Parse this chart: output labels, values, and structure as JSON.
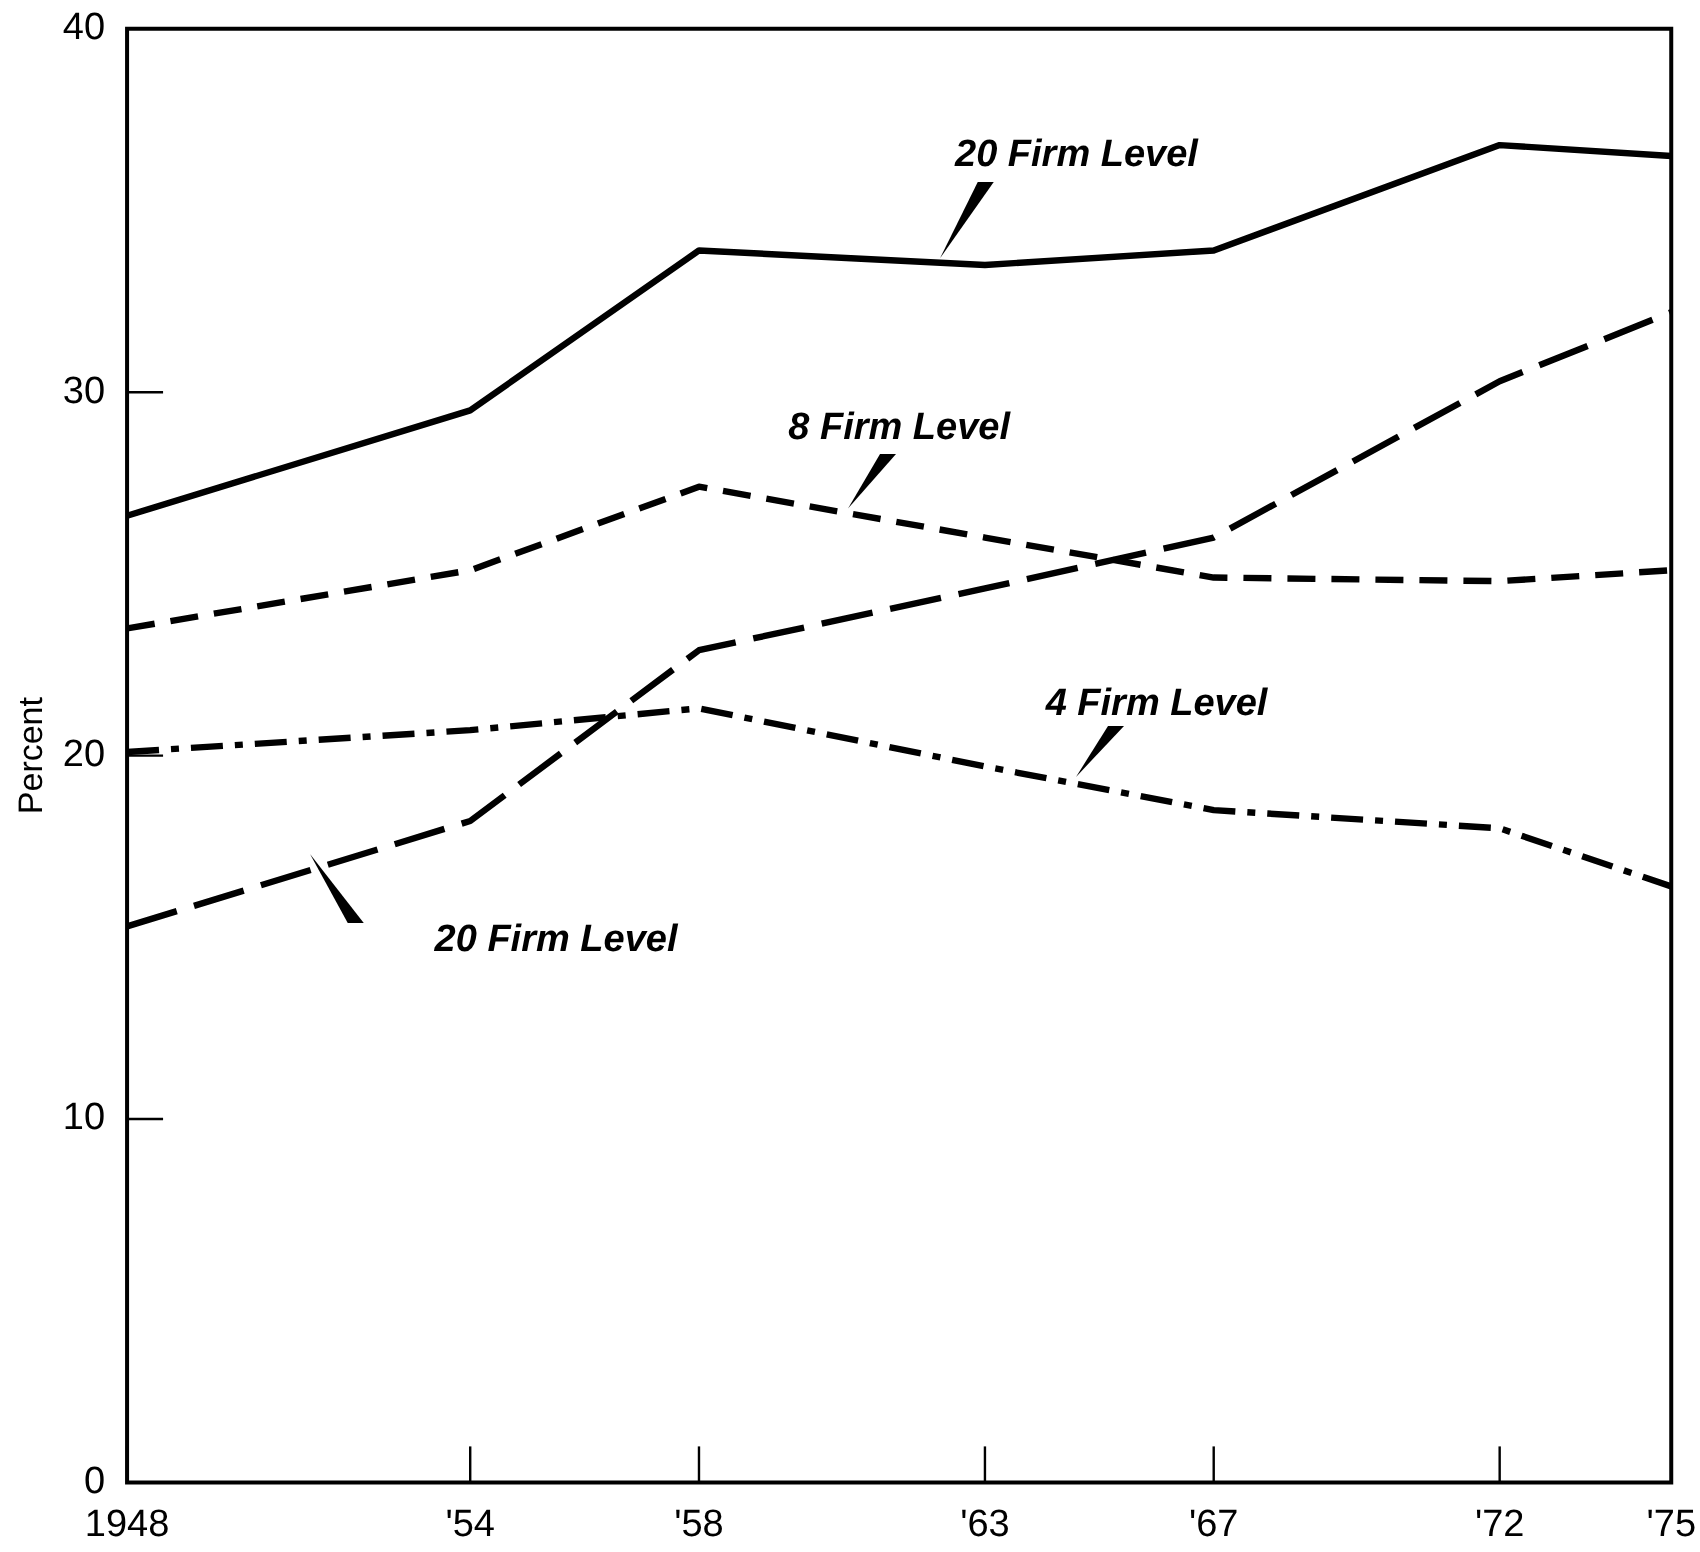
{
  "chart_data": {
    "type": "line",
    "ylabel": "Percent",
    "x": [
      1948,
      1954,
      1958,
      1963,
      1967,
      1972,
      1975
    ],
    "xlim": [
      1948,
      1975
    ],
    "xticks": [
      1948,
      {
        "value": 1954,
        "label": "'54"
      },
      {
        "value": 1958,
        "label": "'58"
      },
      {
        "value": 1963,
        "label": "'63"
      },
      {
        "value": 1967,
        "label": "'67"
      },
      {
        "value": 1972,
        "label": "'72"
      },
      {
        "value": 1975,
        "label": "'75"
      }
    ],
    "ylim": [
      0,
      40
    ],
    "yticks": [
      0,
      10,
      20,
      30,
      40
    ],
    "grid": false,
    "legend": false,
    "marker": "none",
    "series": [
      {
        "name": "20 Firm Level",
        "color": "#000000",
        "line_style": "solid",
        "values": [
          26.6,
          29.5,
          33.9,
          33.5,
          33.9,
          36.8,
          36.5
        ]
      },
      {
        "name": "8 Firm Level",
        "color": "#000000",
        "line_style": "dashed",
        "values": [
          23.5,
          25.1,
          27.4,
          26.0,
          24.9,
          24.8,
          25.1
        ]
      },
      {
        "name": "4 Firm Level",
        "color": "#000000",
        "line_style": "dashdot",
        "values": [
          20.1,
          20.7,
          21.3,
          19.7,
          18.5,
          18.0,
          16.4
        ]
      },
      {
        "name": "20 Firm Level",
        "color": "#000000",
        "line_style": "longdash",
        "values": [
          15.3,
          18.2,
          22.9,
          24.6,
          26.0,
          30.3,
          32.2
        ]
      }
    ]
  }
}
